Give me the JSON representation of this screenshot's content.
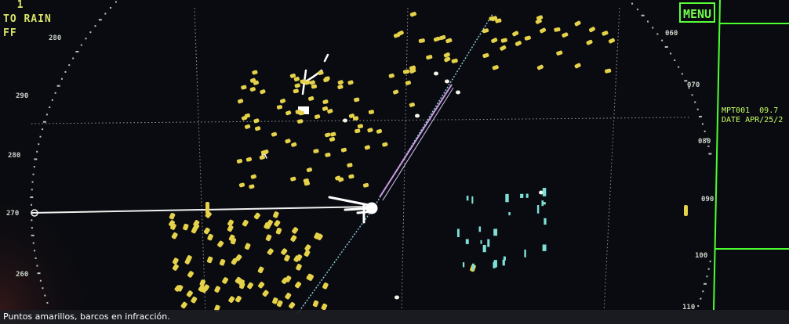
{
  "caption": "Puntos amarillos, barcos en infracción.",
  "hud": {
    "line1": "  1",
    "line2": "TO RAIN",
    "line3": "FF"
  },
  "menu_label": "MENU",
  "side_panel": {
    "line1": "MPT001  09.7",
    "line2": "DATE APR/25/2"
  },
  "bearings": [
    "280",
    "290",
    "280",
    "270",
    "260",
    "060",
    "070",
    "080",
    "090",
    "100",
    "110"
  ],
  "colors": {
    "target_yellow": "#e6d24a",
    "target_cyan": "#7fe0d8",
    "heading_line": "#9ad8e8",
    "panel_green": "#5aff3a"
  }
}
